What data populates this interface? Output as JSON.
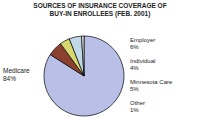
{
  "chart_data": {
    "type": "pie",
    "title": "SOURCES OF INSURANCE COVERAGE OF",
    "subtitle": "BUY-IN ENROLLEES (FEB. 2001)",
    "categories": [
      "Medicare",
      "Employer",
      "Individual",
      "Minnesota Care",
      "Other"
    ],
    "values": [
      84,
      6,
      4,
      5,
      1
    ],
    "value_labels": [
      "84%",
      "6%",
      "4%",
      "5%",
      "1%"
    ],
    "colors": [
      "#b8c0e8",
      "#8b4030",
      "#d8d870",
      "#c0d8e8",
      "#e8e8e8"
    ],
    "data_labels": true
  }
}
